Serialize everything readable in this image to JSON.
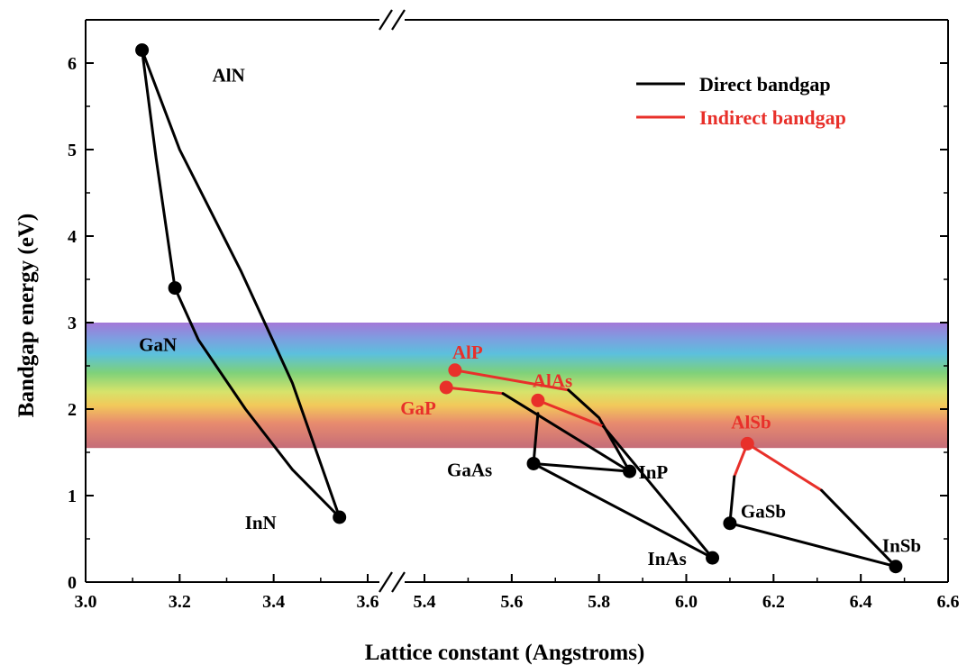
{
  "chart_data": {
    "type": "line",
    "title": "",
    "xlabel": "Lattice constant (Angstroms)",
    "ylabel": "Bandgap energy (eV)",
    "x_axis_broken": true,
    "x_segments": [
      {
        "range": [
          3.0,
          3.7
        ],
        "ticks": [
          "3.0",
          "3.2",
          "3.4",
          "3.6"
        ]
      },
      {
        "range": [
          5.3,
          6.6
        ],
        "ticks": [
          "5.4",
          "5.6",
          "5.8",
          "6.0",
          "6.2",
          "6.4",
          "6.6"
        ]
      }
    ],
    "ylim": [
      0,
      6.5
    ],
    "yticks": [
      "0",
      "1",
      "2",
      "3",
      "4",
      "5",
      "6"
    ],
    "grid": false,
    "legend_position": "top-right",
    "legend": [
      {
        "label": "Direct bandgap",
        "color": "#000000"
      },
      {
        "label": "Indirect bandgap",
        "color": "#e8302a"
      }
    ],
    "visible_spectrum_band": {
      "ymin": 1.55,
      "ymax": 3.0
    },
    "colors": {
      "direct": "#000000",
      "indirect": "#e8302a"
    },
    "materials": [
      {
        "name": "AlN",
        "x": 3.12,
        "y": 6.15,
        "type": "direct"
      },
      {
        "name": "GaN",
        "x": 3.19,
        "y": 3.4,
        "type": "direct"
      },
      {
        "name": "InN",
        "x": 3.54,
        "y": 0.75,
        "type": "direct"
      },
      {
        "name": "AlP",
        "x": 5.47,
        "y": 2.45,
        "type": "indirect"
      },
      {
        "name": "GaP",
        "x": 5.45,
        "y": 2.25,
        "type": "indirect"
      },
      {
        "name": "AlAs",
        "x": 5.66,
        "y": 2.1,
        "type": "indirect"
      },
      {
        "name": "GaAs",
        "x": 5.65,
        "y": 1.37,
        "type": "direct"
      },
      {
        "name": "InP",
        "x": 5.87,
        "y": 1.28,
        "type": "direct"
      },
      {
        "name": "InAs",
        "x": 6.06,
        "y": 0.28,
        "type": "direct"
      },
      {
        "name": "AlSb",
        "x": 6.14,
        "y": 1.6,
        "type": "indirect"
      },
      {
        "name": "GaSb",
        "x": 6.1,
        "y": 0.68,
        "type": "direct"
      },
      {
        "name": "InSb",
        "x": 6.48,
        "y": 0.18,
        "type": "direct"
      }
    ],
    "curves": [
      {
        "type": "direct",
        "points": [
          [
            3.12,
            6.15
          ],
          [
            3.2,
            5.0
          ],
          [
            3.33,
            3.6
          ],
          [
            3.44,
            2.3
          ],
          [
            3.54,
            0.75
          ]
        ]
      },
      {
        "type": "direct",
        "points": [
          [
            3.12,
            6.15
          ],
          [
            3.15,
            4.9
          ],
          [
            3.19,
            3.4
          ]
        ]
      },
      {
        "type": "direct",
        "points": [
          [
            3.19,
            3.4
          ],
          [
            3.24,
            2.8
          ],
          [
            3.34,
            2.0
          ],
          [
            3.44,
            1.3
          ],
          [
            3.54,
            0.75
          ]
        ]
      },
      {
        "type": "indirect",
        "points": [
          [
            5.47,
            2.45
          ],
          [
            5.73,
            2.22
          ]
        ]
      },
      {
        "type": "direct",
        "points": [
          [
            5.73,
            2.22
          ],
          [
            5.8,
            1.9
          ],
          [
            5.87,
            1.28
          ]
        ]
      },
      {
        "type": "indirect",
        "points": [
          [
            5.45,
            2.25
          ],
          [
            5.58,
            2.18
          ]
        ]
      },
      {
        "type": "direct",
        "points": [
          [
            5.58,
            2.18
          ],
          [
            5.87,
            1.28
          ]
        ]
      },
      {
        "type": "indirect",
        "points": [
          [
            5.66,
            2.1
          ],
          [
            5.81,
            1.8
          ]
        ]
      },
      {
        "type": "direct",
        "points": [
          [
            5.81,
            1.8
          ],
          [
            6.06,
            0.28
          ]
        ]
      },
      {
        "type": "direct",
        "points": [
          [
            5.66,
            1.95
          ],
          [
            5.65,
            1.37
          ]
        ]
      },
      {
        "type": "direct",
        "points": [
          [
            5.65,
            1.37
          ],
          [
            5.87,
            1.28
          ]
        ]
      },
      {
        "type": "direct",
        "points": [
          [
            5.65,
            1.37
          ],
          [
            6.06,
            0.28
          ]
        ]
      },
      {
        "type": "indirect",
        "points": [
          [
            6.14,
            1.6
          ],
          [
            6.31,
            1.06
          ]
        ]
      },
      {
        "type": "direct",
        "points": [
          [
            6.31,
            1.06
          ],
          [
            6.48,
            0.18
          ]
        ]
      },
      {
        "type": "indirect",
        "points": [
          [
            6.14,
            1.6
          ],
          [
            6.11,
            1.22
          ]
        ]
      },
      {
        "type": "direct",
        "points": [
          [
            6.11,
            1.22
          ],
          [
            6.1,
            0.68
          ]
        ]
      },
      {
        "type": "direct",
        "points": [
          [
            6.1,
            0.68
          ],
          [
            6.48,
            0.18
          ]
        ]
      }
    ]
  }
}
